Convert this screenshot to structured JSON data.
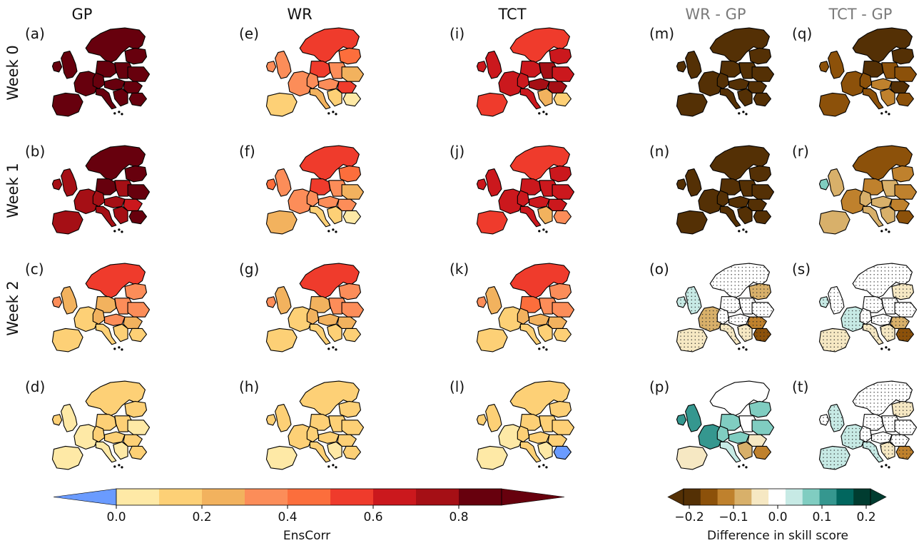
{
  "columns": [
    {
      "title": "GP",
      "gray": false
    },
    {
      "title": "WR",
      "gray": false
    },
    {
      "title": "TCT",
      "gray": false
    },
    {
      "title": "WR - GP",
      "gray": true
    },
    {
      "title": "TCT - GP",
      "gray": true
    }
  ],
  "rows": [
    "Week 0",
    "Week 1",
    "Week 2",
    ""
  ],
  "panels": [
    {
      "letter": "(a)",
      "fills": [
        "#67000d",
        "#67000d",
        "#67000d",
        "#67000d",
        "#67000d",
        "#67000d",
        "#67000d",
        "#67000d",
        "#67000d",
        "#67000d",
        "#67000d",
        "#67000d",
        "#67000d",
        "#67000d",
        "#67000d"
      ],
      "stipple": false
    },
    {
      "letter": "(b)",
      "fills": [
        "#67000d",
        "#67000d",
        "#a50f15",
        "#a50f15",
        "#67000d",
        "#a50f15",
        "#a50f15",
        "#a50f15",
        "#a50f15",
        "#a50f15",
        "#a50f15",
        "#67000d",
        "#a50f15",
        "#cb181d",
        "#67000d"
      ],
      "stipple": false
    },
    {
      "letter": "(c)",
      "fills": [
        "#ef3b2c",
        "#fc8d59",
        "#fc8d59",
        "#f2b25e",
        "#f2b25e",
        "#fdd076",
        "#f2b25e",
        "#fc8d59",
        "#fc8d59",
        "#fdd076",
        "#fdd076",
        "#fc8d59",
        "#fdd076",
        "#f2b25e",
        "#fdd076"
      ],
      "stipple": false
    },
    {
      "letter": "(d)",
      "fills": [
        "#fdd076",
        "#fdd076",
        "#fdd076",
        "#fee9a6",
        "#fdd076",
        "#fee9a6",
        "#fdd076",
        "#fdd076",
        "#fdd076",
        "#fee9a6",
        "#fee9a6",
        "#fee9a6",
        "#fee9a6",
        "#fdd076",
        "#fdd076"
      ],
      "stipple": false
    },
    {
      "letter": "(e)",
      "fills": [
        "#ef3b2c",
        "#fc6e3c",
        "#fc8d59",
        "#fc8d59",
        "#ef3b2c",
        "#fc8d59",
        "#fc8d59",
        "#fc8d59",
        "#fc8d59",
        "#f2b25e",
        "#fdd076",
        "#f2b25e",
        "#fdd076",
        "#ef3b2c",
        "#fee9a6"
      ],
      "stipple": false
    },
    {
      "letter": "(f)",
      "fills": [
        "#ef3b2c",
        "#fc6e3c",
        "#fc6e3c",
        "#fc8d59",
        "#ef3b2c",
        "#fc8d59",
        "#fc8d59",
        "#fc8d59",
        "#fc8d59",
        "#fdd076",
        "#f2b25e",
        "#f2b25e",
        "#fdd076",
        "#fc8d59",
        "#fee9a6"
      ],
      "stipple": false
    },
    {
      "letter": "(g)",
      "fills": [
        "#ef3b2c",
        "#fc8d59",
        "#fc8d59",
        "#f2b25e",
        "#f2b25e",
        "#fdd076",
        "#f2b25e",
        "#fc8d59",
        "#f2b25e",
        "#fdd076",
        "#fdd076",
        "#fc8d59",
        "#fdd076",
        "#f2b25e",
        "#fdd076"
      ],
      "stipple": false
    },
    {
      "letter": "(h)",
      "fills": [
        "#fdd076",
        "#fdd076",
        "#fdd076",
        "#fdd076",
        "#fdd076",
        "#fdd076",
        "#fdd076",
        "#fdd076",
        "#fdd076",
        "#fdd076",
        "#fee9a6",
        "#fdd076",
        "#fee9a6",
        "#fdd076",
        "#fdd076"
      ],
      "stipple": false
    },
    {
      "letter": "(i)",
      "fills": [
        "#ef3b2c",
        "#cb181d",
        "#cb181d",
        "#cb181d",
        "#cb181d",
        "#cb181d",
        "#cb181d",
        "#a50f15",
        "#a50f15",
        "#cb181d",
        "#ef3b2c",
        "#cb181d",
        "#f2b25e",
        "#a50f15",
        "#fdd076"
      ],
      "stipple": false
    },
    {
      "letter": "(j)",
      "fills": [
        "#ef3b2c",
        "#cb181d",
        "#cb181d",
        "#cb181d",
        "#cb181d",
        "#cb181d",
        "#cb181d",
        "#cb181d",
        "#cb181d",
        "#cb181d",
        "#ef3b2c",
        "#cb181d",
        "#f2b25e",
        "#cb181d",
        "#fc8d59"
      ],
      "stipple": false
    },
    {
      "letter": "(k)",
      "fills": [
        "#ef3b2c",
        "#fc8d59",
        "#fc8d59",
        "#f2b25e",
        "#fc6e3c",
        "#fdd076",
        "#f2b25e",
        "#fc8d59",
        "#f2b25e",
        "#fdd076",
        "#fdd076",
        "#fc8d59",
        "#fdd076",
        "#f2b25e",
        "#fdd076"
      ],
      "stipple": false
    },
    {
      "letter": "(l)",
      "fills": [
        "#fdd076",
        "#fdd076",
        "#fdd076",
        "#fdd076",
        "#fdd076",
        "#fee9a6",
        "#fdd076",
        "#fdd076",
        "#fdd076",
        "#fdd076",
        "#fee9a6",
        "#fdd076",
        "#fee9a6",
        "#fdd076",
        "#6a9bff"
      ],
      "stipple": false
    },
    {
      "letter": "(m)",
      "fills": [
        "#543005",
        "#543005",
        "#543005",
        "#543005",
        "#543005",
        "#543005",
        "#543005",
        "#543005",
        "#543005",
        "#543005",
        "#543005",
        "#543005",
        "#543005",
        "#543005",
        "#543005"
      ],
      "stipple": false
    },
    {
      "letter": "(n)",
      "fills": [
        "#543005",
        "#543005",
        "#543005",
        "#543005",
        "#543005",
        "#543005",
        "#543005",
        "#543005",
        "#543005",
        "#543005",
        "#543005",
        "#543005",
        "#543005",
        "#543005",
        "#543005"
      ],
      "stipple": false
    },
    {
      "letter": "(o)",
      "fills": [
        "#ffffff",
        "#d8b06a",
        "#c7eae5",
        "#c7eae5",
        "#ffffff",
        "#d8b06a",
        "#ffffff",
        "#ffffff",
        "#ffffff",
        "#f6e8c3",
        "#f6e8c3",
        "#ffffff",
        "#f6e8c3",
        "#bf812d",
        "#8c510a"
      ],
      "stipple": true
    },
    {
      "letter": "(p)",
      "fills": [
        "#ffffff",
        "#80cdc1",
        "#35978f",
        "#35978f",
        "#80cdc1",
        "#35978f",
        "#80cdc1",
        "#ffffff",
        "#80cdc1",
        "#c7eae5",
        "#f6e8c3",
        "#80cdc1",
        "#d8b06a",
        "#f6e8c3",
        "#bf812d"
      ],
      "stipple": false
    },
    {
      "letter": "(q)",
      "fills": [
        "#543005",
        "#543005",
        "#8c510a",
        "#8c510a",
        "#543005",
        "#8c510a",
        "#8c510a",
        "#8c510a",
        "#bf812d",
        "#8c510a",
        "#8c510a",
        "#8c510a",
        "#bf812d",
        "#543005",
        "#8c510a"
      ],
      "stipple": false
    },
    {
      "letter": "(r)",
      "fills": [
        "#8c510a",
        "#bf812d",
        "#80cdc1",
        "#d8b06a",
        "#bf812d",
        "#bf812d",
        "#d8b06a",
        "#d8b06a",
        "#d8b06a",
        "#d8b06a",
        "#d8b06a",
        "#bf812d",
        "#d8b06a",
        "#bf812d",
        "#8c510a"
      ],
      "stipple": false
    },
    {
      "letter": "(s)",
      "fills": [
        "#ffffff",
        "#f6e8c3",
        "#c7eae5",
        "#ffffff",
        "#ffffff",
        "#c7eae5",
        "#ffffff",
        "#ffffff",
        "#ffffff",
        "#f6e8c3",
        "#f6e8c3",
        "#ffffff",
        "#f6e8c3",
        "#d8b06a",
        "#8c510a"
      ],
      "stipple": true
    },
    {
      "letter": "(t)",
      "fills": [
        "#ffffff",
        "#f6e8c3",
        "#ffffff",
        "#c7eae5",
        "#ffffff",
        "#c7eae5",
        "#ffffff",
        "#ffffff",
        "#ffffff",
        "#c7eae5",
        "#c7eae5",
        "#ffffff",
        "#f6e8c3",
        "#ffffff",
        "#bf812d"
      ],
      "stipple": true
    }
  ],
  "colorbar_left": {
    "title": "EnsCorr",
    "ticks": [
      "0.0",
      "0.2",
      "0.4",
      "0.6",
      "0.8"
    ],
    "under_color": "#6a9bff",
    "colors": [
      "#fee9a6",
      "#fdd076",
      "#f2b25e",
      "#fc8d59",
      "#fc6e3c",
      "#ef3b2c",
      "#cb181d",
      "#a50f15",
      "#67000d"
    ]
  },
  "colorbar_right": {
    "title": "Difference in skill score",
    "ticks": [
      "−0.2",
      "−0.1",
      "0.0",
      "0.1",
      "0.2"
    ],
    "colors": [
      "#543005",
      "#8c510a",
      "#bf812d",
      "#d8b06a",
      "#f6e8c3",
      "#ffffff",
      "#c7eae5",
      "#80cdc1",
      "#35978f",
      "#01665e",
      "#003c30"
    ]
  }
}
